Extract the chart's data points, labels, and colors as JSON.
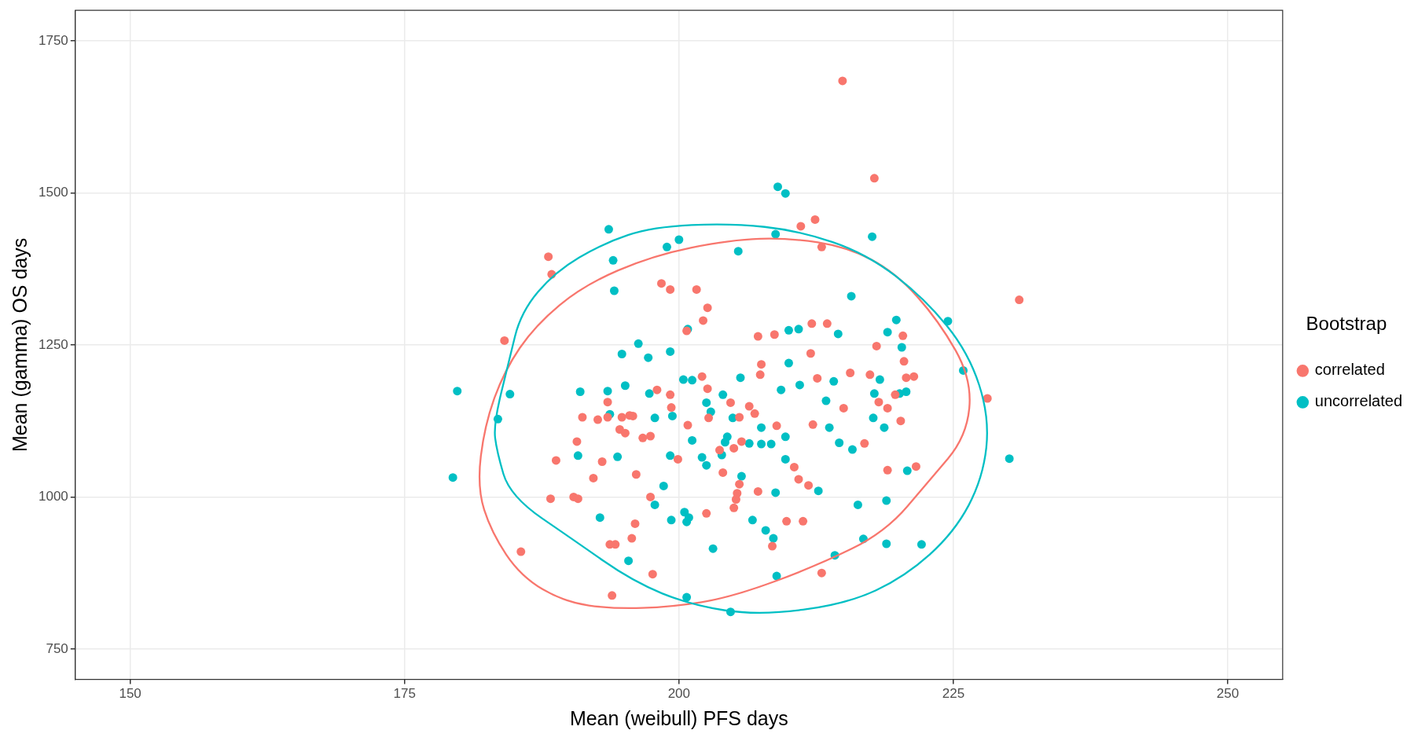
{
  "chart_data": {
    "type": "scatter",
    "xlabel": "Mean (weibull) PFS days",
    "ylabel": "Mean (gamma) OS days",
    "legend_title": "Bootstrap",
    "legend": "right",
    "grid": true,
    "marker": "circle",
    "xlim": [
      145,
      255
    ],
    "ylim": [
      700,
      1800
    ],
    "xticks": [
      150,
      175,
      200,
      225,
      250
    ],
    "yticks": [
      750,
      1000,
      1250,
      1500,
      1750
    ],
    "series": [
      {
        "name": "correlated",
        "color": "#f8766d",
        "x": [
          188.1,
          188.4,
          184.1,
          185.6,
          188.3,
          188.8,
          190.4,
          190.8,
          190.7,
          191.2,
          192.2,
          192.6,
          193.0,
          193.5,
          193.5,
          193.7,
          194.2,
          193.9,
          194.6,
          194.8,
          195.1,
          195.5,
          195.8,
          195.7,
          196.0,
          196.1,
          196.7,
          197.4,
          197.4,
          197.6,
          198.0,
          198.4,
          199.2,
          199.2,
          199.3,
          199.9,
          200.7,
          200.8,
          201.6,
          202.1,
          202.2,
          202.6,
          202.6,
          202.5,
          202.7,
          203.7,
          204.0,
          204.7,
          205.0,
          205.0,
          205.2,
          205.3,
          205.5,
          205.5,
          205.7,
          206.4,
          206.9,
          207.2,
          207.2,
          207.5,
          207.4,
          208.5,
          208.7,
          208.9,
          209.8,
          210.5,
          210.9,
          211.1,
          211.3,
          211.8,
          212.0,
          212.1,
          212.2,
          212.4,
          212.6,
          213.0,
          213.0,
          213.5,
          214.9,
          215.0,
          215.6,
          216.9,
          217.4,
          217.8,
          218.0,
          218.2,
          219.0,
          219.0,
          219.7,
          220.2,
          220.4,
          220.5,
          220.7,
          221.4,
          221.6,
          228.1,
          231.0
        ],
        "values": [
          1395,
          1366,
          1257,
          910,
          997,
          1060,
          1000,
          997,
          1091,
          1131,
          1031,
          1127,
          1058,
          1156,
          1131,
          922,
          922,
          838,
          1111,
          1131,
          1105,
          1134,
          1133,
          932,
          956,
          1037,
          1097,
          1100,
          1000,
          873,
          1176,
          1351,
          1341,
          1168,
          1147,
          1062,
          1273,
          1118,
          1341,
          1198,
          1290,
          1311,
          1178,
          973,
          1130,
          1077,
          1040,
          1155,
          1080,
          982,
          996,
          1006,
          1131,
          1021,
          1091,
          1149,
          1137,
          1264,
          1009,
          1218,
          1201,
          919,
          1267,
          1117,
          960,
          1049,
          1029,
          1445,
          960,
          1019,
          1236,
          1285,
          1119,
          1456,
          1195,
          875,
          1411,
          1285,
          1684,
          1146,
          1204,
          1088,
          1201,
          1524,
          1248,
          1156,
          1146,
          1044,
          1168,
          1125,
          1265,
          1223,
          1196,
          1198,
          1050,
          1162,
          1324
        ]
      },
      {
        "name": "uncorrelated",
        "color": "#00bfc4",
        "x": [
          179.4,
          179.8,
          183.5,
          184.6,
          193.6,
          194.0,
          194.1,
          193.5,
          193.7,
          192.8,
          190.8,
          191.0,
          194.4,
          194.8,
          195.1,
          195.4,
          196.3,
          197.2,
          197.3,
          197.8,
          197.8,
          198.6,
          198.9,
          199.2,
          199.2,
          199.3,
          199.4,
          200.0,
          200.4,
          200.5,
          200.7,
          200.7,
          200.9,
          201.2,
          201.2,
          200.8,
          202.1,
          202.5,
          202.5,
          202.9,
          203.1,
          203.9,
          204.0,
          204.4,
          204.2,
          204.7,
          204.9,
          205.4,
          205.6,
          205.7,
          206.4,
          206.7,
          207.5,
          207.5,
          207.9,
          208.4,
          208.6,
          208.8,
          208.8,
          208.9,
          209.0,
          209.7,
          209.3,
          209.7,
          209.7,
          210.0,
          210.0,
          210.9,
          211.0,
          212.7,
          213.4,
          213.7,
          214.1,
          214.5,
          214.6,
          214.2,
          215.8,
          215.7,
          216.3,
          216.8,
          217.6,
          217.7,
          217.8,
          218.3,
          218.7,
          219.0,
          218.9,
          218.9,
          219.8,
          220.1,
          220.3,
          220.8,
          220.7,
          222.1,
          224.5,
          225.9,
          230.1
        ],
        "values": [
          1032,
          1174,
          1128,
          1169,
          1440,
          1389,
          1339,
          1174,
          1136,
          966,
          1068,
          1173,
          1066,
          1235,
          1183,
          895,
          1252,
          1229,
          1170,
          1130,
          987,
          1018,
          1411,
          1239,
          1068,
          962,
          1133,
          1423,
          1193,
          975,
          959,
          835,
          966,
          1192,
          1093,
          1276,
          1065,
          1052,
          1155,
          1140,
          915,
          1069,
          1168,
          1099,
          1090,
          811,
          1130,
          1404,
          1196,
          1034,
          1088,
          962,
          1114,
          1087,
          945,
          1087,
          932,
          1007,
          1432,
          870,
          1510,
          1499,
          1176,
          1099,
          1062,
          1220,
          1274,
          1276,
          1184,
          1010,
          1158,
          1114,
          1190,
          1268,
          1089,
          904,
          1078,
          1330,
          987,
          931,
          1428,
          1130,
          1170,
          1193,
          1114,
          1271,
          994,
          923,
          1291,
          1170,
          1246,
          1043,
          1173,
          922,
          1289,
          1208,
          1063
        ]
      }
    ]
  }
}
